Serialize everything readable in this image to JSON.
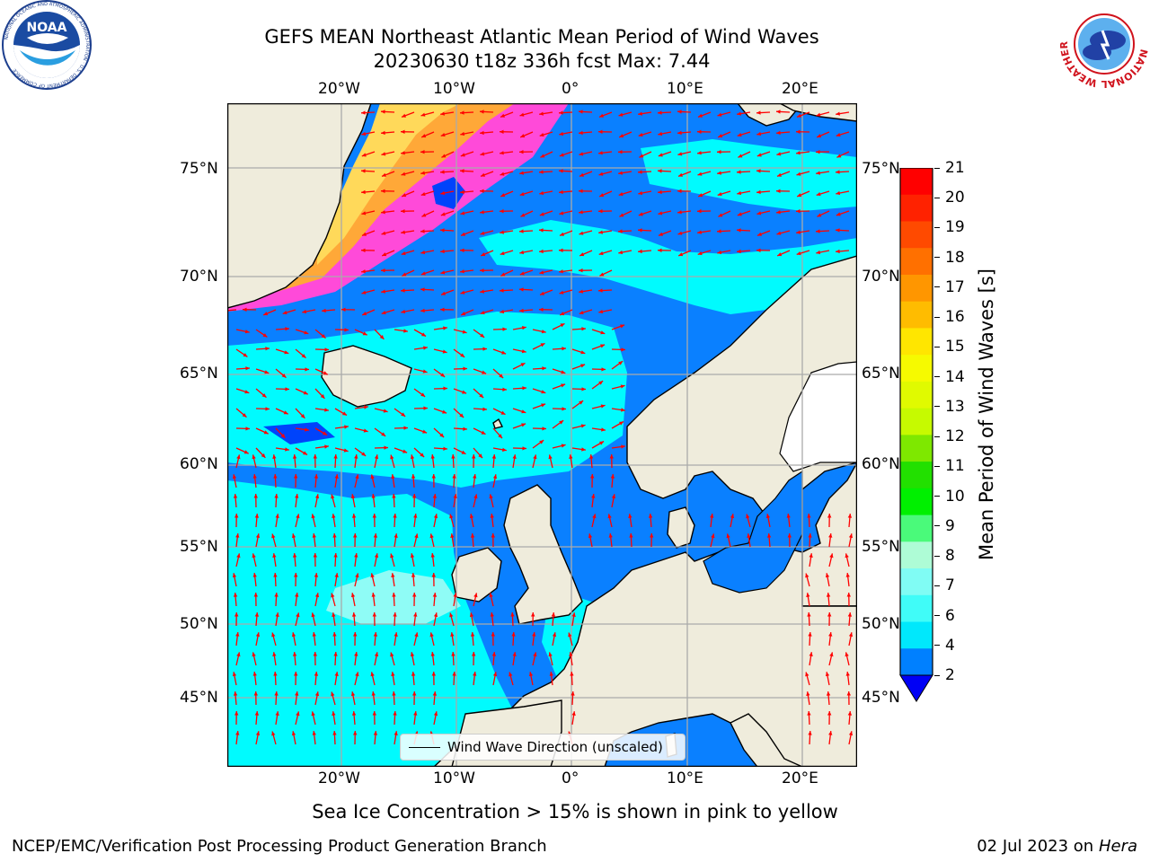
{
  "header": {
    "title_line1": "GEFS MEAN Northeast Atlantic Mean Period of Wind Waves",
    "title_line2": "20230630 t18z 336h fcst   Max: 7.44"
  },
  "map": {
    "lon_labels_top": [
      "20°W",
      "10°W",
      "0°",
      "10°E",
      "20°E"
    ],
    "lon_labels_bottom": [
      "20°W",
      "10°W",
      "0°",
      "10°E",
      "20°E"
    ],
    "lat_labels_left": [
      "75°N",
      "70°N",
      "65°N",
      "60°N",
      "55°N",
      "50°N",
      "45°N"
    ],
    "lat_labels_right": [
      "75°N",
      "70°N",
      "65°N",
      "60°N",
      "55°N",
      "50°N",
      "45°N"
    ],
    "colors": {
      "land": "#efecdc",
      "ocean_low": "#0a80ff",
      "ocean_mid": "#00fbfe",
      "ocean_deep": "#0043fb",
      "ice_pink": "#ff4ad9",
      "ice_orange": "#ffa838",
      "ice_yellow": "#ffd95a",
      "arrow": "#ff0000",
      "grid": "#aaaaaa"
    },
    "legend_label": "Wind Wave Direction (unscaled)"
  },
  "colorbar": {
    "label": "Mean Period of Wind Waves [s]",
    "ticks": [
      "21",
      "20",
      "19",
      "18",
      "17",
      "16",
      "15",
      "14",
      "13",
      "12",
      "11",
      "10",
      "9",
      "8",
      "7",
      "6",
      "4",
      "2"
    ],
    "band_colors": [
      "#ff0000",
      "#ff2200",
      "#ff4a00",
      "#ff7000",
      "#ff9600",
      "#ffbc00",
      "#ffe600",
      "#f6fa00",
      "#e0fa00",
      "#c6fa00",
      "#7ee800",
      "#22e000",
      "#00f000",
      "#4afa7a",
      "#aefcd6",
      "#80fcf4",
      "#40fcf8",
      "#00e8fc",
      "#0080ff"
    ],
    "extend_color": "#0000f5"
  },
  "footer": {
    "ice_note": "Sea Ice Concentration > 15% is shown in pink to yellow",
    "left": "NCEP/EMC/Verification Post Processing Product Generation Branch",
    "right_date": "02 Jul 2023 on",
    "right_host": "Hera"
  },
  "logos": {
    "left_text": "NOAA",
    "left_ring_text": "NATIONAL OCEANIC AND ATMOSPHERIC ADMINISTRATION · U.S. DEPARTMENT OF COMMERCE",
    "right_ring_text": "NATIONAL WEATHER SERVICE"
  }
}
